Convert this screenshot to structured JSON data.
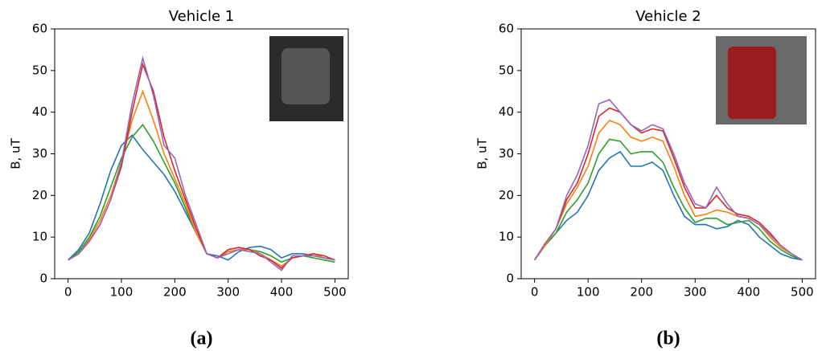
{
  "chart_data": [
    {
      "type": "line",
      "title": "Vehicle 1",
      "ylabel": "B, uT",
      "caption": "(a)",
      "x": [
        0,
        20,
        40,
        60,
        80,
        100,
        120,
        140,
        160,
        180,
        200,
        220,
        240,
        260,
        280,
        300,
        320,
        340,
        360,
        380,
        400,
        420,
        440,
        460,
        480,
        500
      ],
      "xlim": [
        -25,
        525
      ],
      "xticks": [
        0,
        100,
        200,
        300,
        400,
        500
      ],
      "ylim": [
        0,
        60
      ],
      "yticks": [
        0,
        10,
        20,
        30,
        40,
        50,
        60
      ],
      "series": [
        {
          "color": "#1f77b4",
          "values": [
            4.5,
            7,
            11,
            18,
            26,
            32,
            34.5,
            31,
            28,
            25,
            21,
            16,
            11,
            6,
            5.5,
            4.5,
            6.5,
            7.5,
            7.8,
            7,
            5,
            6,
            6,
            5.5,
            5,
            4.5
          ]
        },
        {
          "color": "#2ca02c",
          "values": [
            4.5,
            6.5,
            10,
            15,
            22,
            29,
            34,
            37,
            33,
            28,
            23,
            17,
            11,
            6,
            5,
            6.5,
            7,
            7,
            6.5,
            5.5,
            4,
            5,
            5.5,
            5,
            4.5,
            4
          ]
        },
        {
          "color": "#ff7f0e",
          "values": [
            4.5,
            6,
            9.5,
            14,
            20,
            28,
            38,
            45,
            38,
            30,
            24,
            18,
            11,
            6,
            5,
            6.5,
            7,
            7,
            6,
            4.5,
            3,
            5,
            5.5,
            6,
            5,
            4.5
          ]
        },
        {
          "color": "#d62728",
          "values": [
            4.5,
            6,
            9,
            13,
            19,
            27,
            40,
            51.5,
            45,
            34,
            26,
            19,
            12,
            6,
            5,
            7,
            7.5,
            7,
            5.5,
            4.5,
            2.5,
            5,
            5.5,
            6,
            5.5,
            4.5
          ]
        },
        {
          "color": "#9467bd",
          "values": [
            4.5,
            6,
            9,
            13,
            19,
            28,
            42,
            53,
            44,
            32,
            29,
            20,
            13,
            6,
            5,
            6,
            7,
            6.5,
            6,
            4,
            2,
            5.5,
            5.5,
            5.5,
            5,
            4.5
          ]
        }
      ]
    },
    {
      "type": "line",
      "title": "Vehicle 2",
      "ylabel": "B, uT",
      "caption": "(b)",
      "x": [
        0,
        20,
        40,
        60,
        80,
        100,
        120,
        140,
        160,
        180,
        200,
        220,
        240,
        260,
        280,
        300,
        320,
        340,
        360,
        380,
        400,
        420,
        440,
        460,
        480,
        500
      ],
      "xlim": [
        -25,
        525
      ],
      "xticks": [
        0,
        100,
        200,
        300,
        400,
        500
      ],
      "ylim": [
        0,
        60
      ],
      "yticks": [
        0,
        10,
        20,
        30,
        40,
        50,
        60
      ],
      "series": [
        {
          "color": "#1f77b4",
          "values": [
            4.5,
            8,
            11,
            14,
            16,
            20,
            26,
            29,
            30.5,
            27,
            27,
            28,
            26,
            20,
            15,
            13,
            13,
            12,
            12.5,
            14,
            13,
            10,
            8,
            6,
            5,
            4.5
          ]
        },
        {
          "color": "#2ca02c",
          "values": [
            4.5,
            8,
            11,
            16,
            19,
            23,
            30,
            33.5,
            33,
            30,
            30.5,
            30.5,
            28,
            22,
            17,
            13.5,
            14.5,
            14.5,
            13,
            13.5,
            14,
            12,
            9,
            7,
            5.5,
            4.5
          ]
        },
        {
          "color": "#ff7f0e",
          "values": [
            4.5,
            8,
            12,
            18,
            22,
            27,
            35,
            38,
            37,
            34,
            33,
            34,
            33,
            27,
            20,
            15,
            15.5,
            16.5,
            16,
            15,
            14.5,
            13,
            10,
            7.5,
            6,
            4.5
          ]
        },
        {
          "color": "#d62728",
          "values": [
            4.5,
            8.5,
            12,
            19,
            23,
            30,
            39,
            41,
            40,
            37,
            35,
            36,
            35.5,
            29,
            22,
            17,
            17,
            20,
            17,
            15.5,
            15,
            13.5,
            11,
            8,
            6,
            4.5
          ]
        },
        {
          "color": "#9467bd",
          "values": [
            4.5,
            8.5,
            12,
            20,
            25,
            32,
            42,
            43,
            40,
            37,
            35.5,
            37,
            36,
            30,
            23,
            18,
            17,
            22,
            18,
            15,
            14.5,
            13,
            10.5,
            8,
            6,
            4.5
          ]
        }
      ]
    }
  ]
}
